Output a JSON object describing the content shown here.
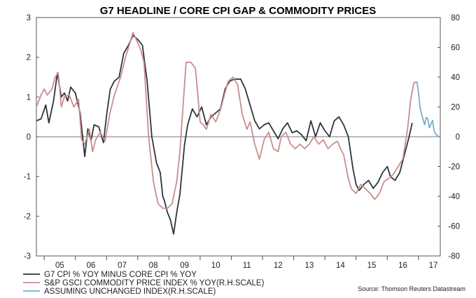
{
  "chart_data": {
    "type": "line",
    "title": "G7 HEADLINE / CORE CPI GAP & COMMODITY PRICES",
    "source": "Source: Thomson Reuters Datastream",
    "x_labels": [
      "05",
      "06",
      "07",
      "08",
      "09",
      "10",
      "11",
      "12",
      "13",
      "14",
      "15",
      "16",
      "17"
    ],
    "x_range": [
      2004.75,
      2017.7
    ],
    "left_axis": {
      "ylim": [
        -3,
        3
      ],
      "ticks": [
        -3,
        -2,
        -1,
        0,
        1,
        2,
        3
      ]
    },
    "right_axis": {
      "ylim": [
        -80,
        80
      ],
      "ticks": [
        -80,
        -60,
        -40,
        -20,
        0,
        20,
        40,
        60,
        80
      ]
    },
    "legend_position": "bottom-left",
    "series": [
      {
        "name": "G7 CPI % YOY MINUS CORE CPI % YOY",
        "axis": "left",
        "color": "#2d3440",
        "points": [
          [
            2004.75,
            0.4
          ],
          [
            2004.9,
            0.45
          ],
          [
            2005.05,
            0.8
          ],
          [
            2005.15,
            0.35
          ],
          [
            2005.3,
            0.9
          ],
          [
            2005.42,
            1.6
          ],
          [
            2005.55,
            1.0
          ],
          [
            2005.65,
            1.1
          ],
          [
            2005.75,
            0.9
          ],
          [
            2005.85,
            1.25
          ],
          [
            2006.0,
            1.1
          ],
          [
            2006.15,
            0.6
          ],
          [
            2006.3,
            -0.5
          ],
          [
            2006.4,
            0.2
          ],
          [
            2006.5,
            -0.1
          ],
          [
            2006.6,
            0.3
          ],
          [
            2006.75,
            0.25
          ],
          [
            2006.9,
            -0.15
          ],
          [
            2007.0,
            0.55
          ],
          [
            2007.12,
            1.2
          ],
          [
            2007.25,
            1.4
          ],
          [
            2007.4,
            1.5
          ],
          [
            2007.55,
            2.1
          ],
          [
            2007.7,
            2.3
          ],
          [
            2007.85,
            2.55
          ],
          [
            2008.0,
            2.45
          ],
          [
            2008.15,
            2.3
          ],
          [
            2008.3,
            1.4
          ],
          [
            2008.45,
            0.0
          ],
          [
            2008.6,
            -0.65
          ],
          [
            2008.72,
            -0.9
          ],
          [
            2008.8,
            -1.5
          ],
          [
            2008.85,
            -1.6
          ],
          [
            2008.95,
            -1.9
          ],
          [
            2009.05,
            -2.1
          ],
          [
            2009.15,
            -2.45
          ],
          [
            2009.25,
            -1.9
          ],
          [
            2009.35,
            -1.45
          ],
          [
            2009.5,
            -0.2
          ],
          [
            2009.6,
            0.3
          ],
          [
            2009.75,
            0.7
          ],
          [
            2009.9,
            0.5
          ],
          [
            2010.05,
            0.75
          ],
          [
            2010.2,
            0.3
          ],
          [
            2010.35,
            0.5
          ],
          [
            2010.5,
            0.6
          ],
          [
            2010.65,
            0.7
          ],
          [
            2010.8,
            1.2
          ],
          [
            2010.95,
            1.4
          ],
          [
            2011.1,
            1.45
          ],
          [
            2011.3,
            1.45
          ],
          [
            2011.45,
            1.2
          ],
          [
            2011.6,
            0.8
          ],
          [
            2011.75,
            0.4
          ],
          [
            2011.9,
            0.2
          ],
          [
            2012.05,
            0.3
          ],
          [
            2012.2,
            0.35
          ],
          [
            2012.35,
            0.15
          ],
          [
            2012.5,
            -0.05
          ],
          [
            2012.65,
            0.2
          ],
          [
            2012.8,
            0.35
          ],
          [
            2012.95,
            0.1
          ],
          [
            2013.1,
            0.15
          ],
          [
            2013.25,
            0.05
          ],
          [
            2013.4,
            -0.1
          ],
          [
            2013.55,
            0.4
          ],
          [
            2013.7,
            0.0
          ],
          [
            2013.85,
            0.35
          ],
          [
            2014.0,
            0.15
          ],
          [
            2014.15,
            0.0
          ],
          [
            2014.3,
            0.4
          ],
          [
            2014.45,
            0.5
          ],
          [
            2014.6,
            0.3
          ],
          [
            2014.75,
            0.0
          ],
          [
            2014.9,
            -0.8
          ],
          [
            2015.0,
            -1.2
          ],
          [
            2015.1,
            -1.35
          ],
          [
            2015.25,
            -1.2
          ],
          [
            2015.4,
            -1.1
          ],
          [
            2015.55,
            -1.3
          ],
          [
            2015.7,
            -1.15
          ],
          [
            2015.85,
            -0.9
          ],
          [
            2016.0,
            -0.75
          ],
          [
            2016.1,
            -1.0
          ],
          [
            2016.25,
            -1.1
          ],
          [
            2016.4,
            -0.9
          ],
          [
            2016.55,
            -0.45
          ],
          [
            2016.7,
            0.0
          ],
          [
            2016.8,
            0.35
          ]
        ]
      },
      {
        "name": "S&P GSCI COMMODITY PRICE INDEX % YOY(R.H.SCALE)",
        "axis": "right",
        "color": "#c98d8d",
        "points": [
          [
            2004.75,
            20
          ],
          [
            2004.9,
            28
          ],
          [
            2005.0,
            32
          ],
          [
            2005.1,
            28
          ],
          [
            2005.25,
            32
          ],
          [
            2005.35,
            40
          ],
          [
            2005.45,
            43
          ],
          [
            2005.55,
            20
          ],
          [
            2005.65,
            27
          ],
          [
            2005.8,
            28
          ],
          [
            2005.95,
            20
          ],
          [
            2006.1,
            25
          ],
          [
            2006.2,
            -2
          ],
          [
            2006.3,
            -5
          ],
          [
            2006.45,
            5
          ],
          [
            2006.55,
            -10
          ],
          [
            2006.65,
            -2
          ],
          [
            2006.8,
            3
          ],
          [
            2006.95,
            -3
          ],
          [
            2007.1,
            15
          ],
          [
            2007.25,
            28
          ],
          [
            2007.45,
            40
          ],
          [
            2007.6,
            53
          ],
          [
            2007.75,
            63
          ],
          [
            2007.85,
            70
          ],
          [
            2008.0,
            63
          ],
          [
            2008.1,
            58
          ],
          [
            2008.2,
            50
          ],
          [
            2008.35,
            0
          ],
          [
            2008.5,
            -30
          ],
          [
            2008.65,
            -45
          ],
          [
            2008.8,
            -48
          ],
          [
            2008.95,
            -48
          ],
          [
            2009.1,
            -45
          ],
          [
            2009.25,
            -30
          ],
          [
            2009.35,
            -10
          ],
          [
            2009.45,
            20
          ],
          [
            2009.55,
            50
          ],
          [
            2009.7,
            50
          ],
          [
            2009.85,
            46
          ],
          [
            2010.0,
            10
          ],
          [
            2010.1,
            8
          ],
          [
            2010.2,
            5
          ],
          [
            2010.35,
            15
          ],
          [
            2010.5,
            10
          ],
          [
            2010.65,
            18
          ],
          [
            2010.8,
            30
          ],
          [
            2010.9,
            37
          ],
          [
            2011.05,
            40
          ],
          [
            2011.2,
            35
          ],
          [
            2011.35,
            15
          ],
          [
            2011.5,
            5
          ],
          [
            2011.6,
            10
          ],
          [
            2011.75,
            -5
          ],
          [
            2011.9,
            -15
          ],
          [
            2012.05,
            -2
          ],
          [
            2012.2,
            3
          ],
          [
            2012.35,
            -8
          ],
          [
            2012.5,
            -10
          ],
          [
            2012.6,
            0
          ],
          [
            2012.75,
            3
          ],
          [
            2012.9,
            -5
          ],
          [
            2013.05,
            -8
          ],
          [
            2013.2,
            -5
          ],
          [
            2013.35,
            -8
          ],
          [
            2013.5,
            -5
          ],
          [
            2013.65,
            0
          ],
          [
            2013.8,
            -5
          ],
          [
            2013.95,
            -2
          ],
          [
            2014.1,
            -8
          ],
          [
            2014.25,
            -5
          ],
          [
            2014.4,
            -3
          ],
          [
            2014.5,
            -8
          ],
          [
            2014.6,
            -12
          ],
          [
            2014.75,
            -28
          ],
          [
            2014.85,
            -35
          ],
          [
            2015.0,
            -38
          ],
          [
            2015.15,
            -32
          ],
          [
            2015.3,
            -35
          ],
          [
            2015.45,
            -38
          ],
          [
            2015.6,
            -42
          ],
          [
            2015.75,
            -38
          ],
          [
            2015.9,
            -30
          ],
          [
            2016.05,
            -28
          ],
          [
            2016.2,
            -25
          ],
          [
            2016.35,
            -20
          ],
          [
            2016.5,
            -15
          ],
          [
            2016.65,
            5
          ],
          [
            2016.75,
            25
          ],
          [
            2016.85,
            36
          ],
          [
            2016.95,
            37
          ]
        ]
      },
      {
        "name": "ASSUMING UNCHANGED INDEX(R.H.SCALE)",
        "axis": "right",
        "color": "#7aaec8",
        "points": [
          [
            2016.95,
            37
          ],
          [
            2017.0,
            30
          ],
          [
            2017.05,
            20
          ],
          [
            2017.1,
            15
          ],
          [
            2017.2,
            8
          ],
          [
            2017.25,
            13
          ],
          [
            2017.3,
            12
          ],
          [
            2017.35,
            6
          ],
          [
            2017.45,
            11
          ],
          [
            2017.5,
            4
          ],
          [
            2017.55,
            2
          ],
          [
            2017.65,
            0
          ]
        ]
      }
    ]
  }
}
